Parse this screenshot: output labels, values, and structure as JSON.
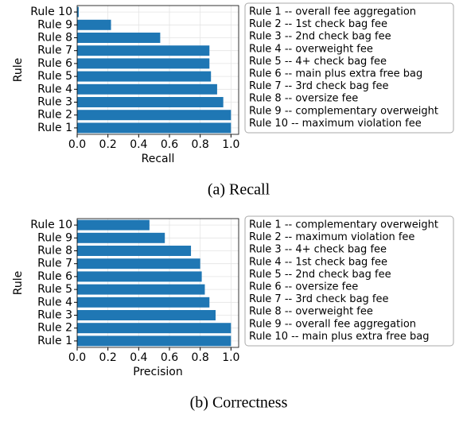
{
  "chart_data": [
    {
      "type": "barh",
      "xlabel": "Recall",
      "ylabel": "Rule",
      "caption": "(a) Recall",
      "categories": [
        "Rule 1",
        "Rule 2",
        "Rule 3",
        "Rule 4",
        "Rule 5",
        "Rule 6",
        "Rule 7",
        "Rule 8",
        "Rule 9",
        "Rule 10"
      ],
      "values": [
        1.0,
        1.0,
        0.95,
        0.91,
        0.87,
        0.86,
        0.86,
        0.54,
        0.22,
        0.01
      ],
      "color": "#1f77b4",
      "xlim": [
        0,
        1.05
      ],
      "xticks": [
        {
          "value": 0,
          "label": "0.0"
        },
        {
          "value": 0.2,
          "label": "0.2"
        },
        {
          "value": 0.4,
          "label": "0.4"
        },
        {
          "value": 0.6,
          "label": "0.6"
        },
        {
          "value": 0.8,
          "label": "0.8"
        },
        {
          "value": 1,
          "label": "1.0"
        }
      ],
      "grid": true,
      "annotations": [
        "Rule 1 -- overall fee aggregation",
        "Rule 2 -- 1st check bag fee",
        "Rule 3 -- 2nd check bag fee",
        "Rule 4 -- overweight fee",
        "Rule 5 -- 4+ check bag fee",
        "Rule 6 -- main plus extra free bag",
        "Rule 7 -- 3rd check bag fee",
        "Rule 8 -- oversize fee",
        "Rule 9 -- complementary overweight",
        "Rule 10 -- maximum violation fee"
      ]
    },
    {
      "type": "barh",
      "xlabel": "Precision",
      "ylabel": "Rule",
      "caption": "(b) Correctness",
      "categories": [
        "Rule 1",
        "Rule 2",
        "Rule 3",
        "Rule 4",
        "Rule 5",
        "Rule 6",
        "Rule 7",
        "Rule 8",
        "Rule 9",
        "Rule 10"
      ],
      "values": [
        1.0,
        1.0,
        0.9,
        0.86,
        0.83,
        0.81,
        0.8,
        0.74,
        0.57,
        0.47
      ],
      "color": "#1f77b4",
      "xlim": [
        0,
        1.05
      ],
      "xticks": [
        {
          "value": 0,
          "label": "0.0"
        },
        {
          "value": 0.2,
          "label": "0.2"
        },
        {
          "value": 0.4,
          "label": "0.4"
        },
        {
          "value": 0.6,
          "label": "0.6"
        },
        {
          "value": 0.8,
          "label": "0.8"
        },
        {
          "value": 1,
          "label": "1.0"
        }
      ],
      "grid": true,
      "annotations": [
        "Rule 1 -- complementary overweight",
        "Rule 2 -- maximum violation fee",
        "Rule 3 -- 4+ check bag fee",
        "Rule 4 -- 1st check bag fee",
        "Rule 5 -- 2nd check bag fee",
        "Rule 6 -- oversize fee",
        "Rule 7 -- 3rd check bag fee",
        "Rule 8 -- overweight fee",
        "Rule 9 -- overall fee aggregation",
        "Rule 10 -- main plus extra free bag"
      ]
    }
  ]
}
